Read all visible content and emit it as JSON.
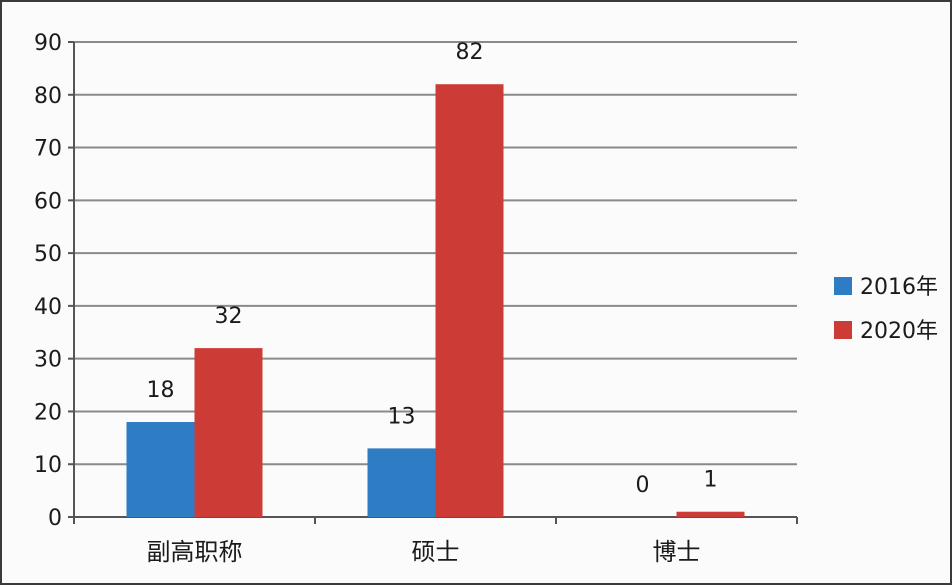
{
  "chart_data": {
    "type": "bar",
    "categories": [
      "副高职称",
      "硕士",
      "博士"
    ],
    "series": [
      {
        "name": "2016年",
        "values": [
          18,
          13,
          0
        ],
        "color": "#2e7dc4"
      },
      {
        "name": "2020年",
        "values": [
          32,
          82,
          1
        ],
        "color": "#cc3b36"
      }
    ],
    "ylim": [
      0,
      90
    ],
    "yticks": [
      0,
      10,
      20,
      30,
      40,
      50,
      60,
      70,
      80,
      90
    ],
    "grid": true,
    "legend_position": "right",
    "data_labels": true
  }
}
